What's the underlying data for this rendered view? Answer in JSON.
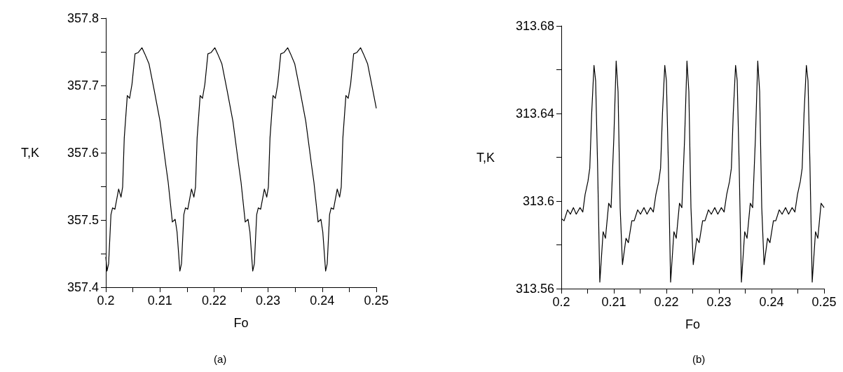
{
  "chart_data": [
    {
      "type": "line",
      "xlabel": "Fo",
      "ylabel": "T,K",
      "annotations": [
        "(a)"
      ],
      "grid": false,
      "xlim": [
        0.2,
        0.25
      ],
      "ylim": [
        357.4,
        357.8
      ],
      "xticks": [
        0.2,
        {
          "value": 0.205,
          "label": null
        },
        0.21,
        {
          "value": 0.215,
          "label": null
        },
        0.22,
        {
          "value": 0.225,
          "label": null
        },
        0.23,
        {
          "value": 0.235,
          "label": null
        },
        0.24,
        {
          "value": 0.245,
          "label": null
        },
        0.25
      ],
      "yticks": [
        357.4,
        {
          "value": 357.45,
          "label": null
        },
        357.5,
        {
          "value": 357.55,
          "label": null
        },
        357.6,
        {
          "value": 357.65,
          "label": null
        },
        357.7,
        {
          "value": 357.75,
          "label": null
        },
        357.8
      ],
      "series": [
        {
          "color": "#000000",
          "x": [
            0.2,
            0.20022,
            0.20052,
            0.20095,
            0.20125,
            0.20168,
            0.20237,
            0.20281,
            0.20311,
            0.20341,
            0.20397,
            0.2044,
            0.20484,
            0.2054,
            0.206,
            0.20669,
            0.20721,
            0.20799,
            0.20894,
            0.21002,
            0.2111,
            0.21153,
            0.2123,
            0.21282,
            0.21317,
            0.21369,
            0.21399,
            0.21442,
            0.21472,
            0.21515,
            0.21584,
            0.21628,
            0.21658,
            0.21688,
            0.21744,
            0.21787,
            0.21831,
            0.21887,
            0.21947,
            0.22016,
            0.22068,
            0.22146,
            0.22241,
            0.22349,
            0.22457,
            0.225,
            0.22577,
            0.22629,
            0.22664,
            0.22716,
            0.22746,
            0.22789,
            0.22819,
            0.22862,
            0.22931,
            0.22975,
            0.23005,
            0.23035,
            0.23091,
            0.23134,
            0.23178,
            0.23234,
            0.23294,
            0.23363,
            0.23415,
            0.23493,
            0.23588,
            0.23696,
            0.23804,
            0.23847,
            0.23924,
            0.23976,
            0.24011,
            0.24063,
            0.24093,
            0.24136,
            0.24166,
            0.24209,
            0.24278,
            0.24322,
            0.24352,
            0.24382,
            0.24438,
            0.24481,
            0.24525,
            0.24581,
            0.24641,
            0.2471,
            0.24762,
            0.2484,
            0.24935,
            0.25
          ],
          "values": [
            357.445,
            357.424,
            357.435,
            357.508,
            357.518,
            357.516,
            357.546,
            357.534,
            357.549,
            357.622,
            357.685,
            357.681,
            357.702,
            357.747,
            357.749,
            357.756,
            357.747,
            357.732,
            357.693,
            357.647,
            357.581,
            357.556,
            357.497,
            357.501,
            357.482,
            357.424,
            357.435,
            357.508,
            357.518,
            357.516,
            357.546,
            357.534,
            357.549,
            357.622,
            357.685,
            357.681,
            357.702,
            357.747,
            357.749,
            357.756,
            357.747,
            357.732,
            357.693,
            357.647,
            357.581,
            357.556,
            357.497,
            357.501,
            357.482,
            357.424,
            357.435,
            357.508,
            357.518,
            357.516,
            357.546,
            357.534,
            357.549,
            357.622,
            357.685,
            357.681,
            357.702,
            357.747,
            357.749,
            357.756,
            357.747,
            357.732,
            357.693,
            357.647,
            357.581,
            357.556,
            357.497,
            357.501,
            357.482,
            357.424,
            357.435,
            357.508,
            357.518,
            357.516,
            357.546,
            357.534,
            357.549,
            357.622,
            357.685,
            357.681,
            357.702,
            357.747,
            357.749,
            357.756,
            357.747,
            357.732,
            357.693,
            357.666
          ]
        }
      ]
    },
    {
      "type": "line",
      "xlabel": "Fo",
      "ylabel": "T,K",
      "annotations": [
        "(b)"
      ],
      "grid": false,
      "xlim": [
        0.2,
        0.25
      ],
      "ylim": [
        313.56,
        313.68
      ],
      "xticks": [
        0.2,
        {
          "value": 0.205,
          "label": null
        },
        0.21,
        {
          "value": 0.215,
          "label": null
        },
        0.22,
        {
          "value": 0.225,
          "label": null
        },
        0.23,
        {
          "value": 0.235,
          "label": null
        },
        0.24,
        {
          "value": 0.245,
          "label": null
        },
        0.25
      ],
      "yticks": [
        313.56,
        {
          "value": 313.58,
          "label": null
        },
        313.6,
        {
          "value": 313.62,
          "label": null
        },
        313.64,
        {
          "value": 313.66,
          "label": null
        },
        313.68
      ],
      "series": [
        {
          "color": "#000000",
          "x": [
            0.2,
            0.20053,
            0.2012,
            0.20173,
            0.20231,
            0.20284,
            0.20356,
            0.20409,
            0.20453,
            0.20507,
            0.20542,
            0.20578,
            0.20622,
            0.20653,
            0.20689,
            0.20733,
            0.20796,
            0.2084,
            0.20902,
            0.20947,
            0.21,
            0.21044,
            0.2108,
            0.2112,
            0.21164,
            0.21231,
            0.21276,
            0.21342,
            0.21387,
            0.21453,
            0.21507,
            0.21573,
            0.21631,
            0.21698,
            0.21751,
            0.218,
            0.21854,
            0.21889,
            0.21925,
            0.21969,
            0.22,
            0.22036,
            0.2208,
            0.22143,
            0.22187,
            0.22249,
            0.22294,
            0.22347,
            0.22391,
            0.22427,
            0.22467,
            0.22511,
            0.22578,
            0.22623,
            0.22689,
            0.22734,
            0.228,
            0.22854,
            0.2292,
            0.22978,
            0.23045,
            0.23098,
            0.23147,
            0.23201,
            0.23236,
            0.23272,
            0.23316,
            0.23347,
            0.23383,
            0.23427,
            0.2349,
            0.23534,
            0.23596,
            0.23641,
            0.23694,
            0.23738,
            0.23774,
            0.23814,
            0.23858,
            0.23925,
            0.2397,
            0.24036,
            0.24081,
            0.24147,
            0.24201,
            0.24267,
            0.24325,
            0.24392,
            0.24445,
            0.24494,
            0.24548,
            0.24583,
            0.24619,
            0.24663,
            0.24694,
            0.2473,
            0.24774,
            0.24837,
            0.24881,
            0.24943,
            0.25
          ],
          "values": [
            313.592,
            313.591,
            313.596,
            313.594,
            313.597,
            313.594,
            313.597,
            313.595,
            313.603,
            313.609,
            313.615,
            313.64,
            313.662,
            313.655,
            313.618,
            313.563,
            313.586,
            313.583,
            313.599,
            313.597,
            313.629,
            313.664,
            313.65,
            313.597,
            313.571,
            313.583,
            313.581,
            313.591,
            313.591,
            313.596,
            313.594,
            313.597,
            313.594,
            313.597,
            313.595,
            313.603,
            313.609,
            313.615,
            313.64,
            313.662,
            313.655,
            313.618,
            313.563,
            313.586,
            313.583,
            313.599,
            313.597,
            313.629,
            313.664,
            313.65,
            313.597,
            313.571,
            313.583,
            313.581,
            313.591,
            313.591,
            313.596,
            313.594,
            313.597,
            313.594,
            313.597,
            313.595,
            313.603,
            313.609,
            313.615,
            313.64,
            313.662,
            313.655,
            313.618,
            313.563,
            313.586,
            313.583,
            313.599,
            313.597,
            313.629,
            313.664,
            313.65,
            313.597,
            313.571,
            313.583,
            313.581,
            313.591,
            313.591,
            313.596,
            313.594,
            313.597,
            313.594,
            313.597,
            313.595,
            313.603,
            313.609,
            313.615,
            313.64,
            313.662,
            313.655,
            313.618,
            313.563,
            313.586,
            313.583,
            313.599,
            313.597
          ]
        }
      ]
    }
  ]
}
